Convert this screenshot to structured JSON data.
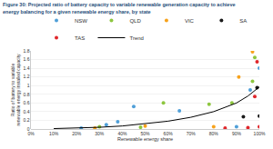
{
  "chart_data": {
    "type": "scatter",
    "title": "Figure 30: Projected ratio of battery capacity to variable renewable generation capacity to achieve\nenergy balancing for a given renewable energy share, by state",
    "x_label": "Renewable energy share",
    "y_label": "Ratio of battery to variable\nrenewable energy installed capacity",
    "xlim": [
      0,
      100
    ],
    "xticks": [
      {
        "value": 0,
        "label": "0%"
      },
      {
        "value": 10,
        "label": "10%"
      },
      {
        "value": 20,
        "label": "20%"
      },
      {
        "value": 30,
        "label": "30%"
      },
      {
        "value": 40,
        "label": "40%"
      },
      {
        "value": 50,
        "label": "50%"
      },
      {
        "value": 60,
        "label": "60%"
      },
      {
        "value": 70,
        "label": "70%"
      },
      {
        "value": 80,
        "label": "80%"
      },
      {
        "value": 90,
        "label": "90%"
      },
      {
        "value": 100,
        "label": "100%"
      }
    ],
    "ylim": [
      0,
      1.8
    ],
    "yticks": [
      0,
      0.2,
      0.4,
      0.6,
      0.8,
      1,
      1.2,
      1.4,
      1.6,
      1.8
    ],
    "grid": true,
    "legend": "top",
    "series": [
      {
        "name": "NSW",
        "color": "#4f9fd8",
        "marker": "circle",
        "x": [
          22,
          33,
          38,
          45,
          65,
          90,
          96,
          100
        ],
        "values": [
          0.02,
          0.1,
          0.17,
          0.52,
          0.42,
          0.05,
          0.9,
          1.4
        ]
      },
      {
        "name": "QLD",
        "color": "#8dc63f",
        "marker": "circle",
        "x": [
          30,
          48,
          58,
          78,
          88,
          97,
          98
        ],
        "values": [
          0.05,
          0.04,
          0.6,
          0.57,
          0.6,
          1.1,
          1.65
        ]
      },
      {
        "name": "VIC",
        "color": "#f7a21b",
        "marker": "circle",
        "x": [
          28,
          50,
          80,
          91,
          97
        ],
        "values": [
          0.02,
          0.07,
          0.05,
          1.2,
          1.78
        ]
      },
      {
        "name": "SA",
        "color": "#1a1a1a",
        "marker": "circle",
        "x": [
          93,
          99,
          100
        ],
        "values": [
          0.28,
          0.95,
          0.3
        ]
      },
      {
        "name": "TAS",
        "color": "#e0262b",
        "marker": "circle",
        "x": [
          85,
          95,
          98,
          99,
          100
        ],
        "values": [
          0.02,
          0.03,
          0.75,
          1.55,
          0.05
        ]
      },
      {
        "name": "Trend",
        "color": "#000000",
        "type": "line",
        "line_style": "solid",
        "x": [
          10,
          20,
          30,
          40,
          50,
          60,
          70,
          80,
          90,
          95,
          100
        ],
        "values": [
          0.01,
          0.02,
          0.04,
          0.07,
          0.12,
          0.18,
          0.27,
          0.4,
          0.6,
          0.76,
          0.97
        ]
      }
    ]
  }
}
